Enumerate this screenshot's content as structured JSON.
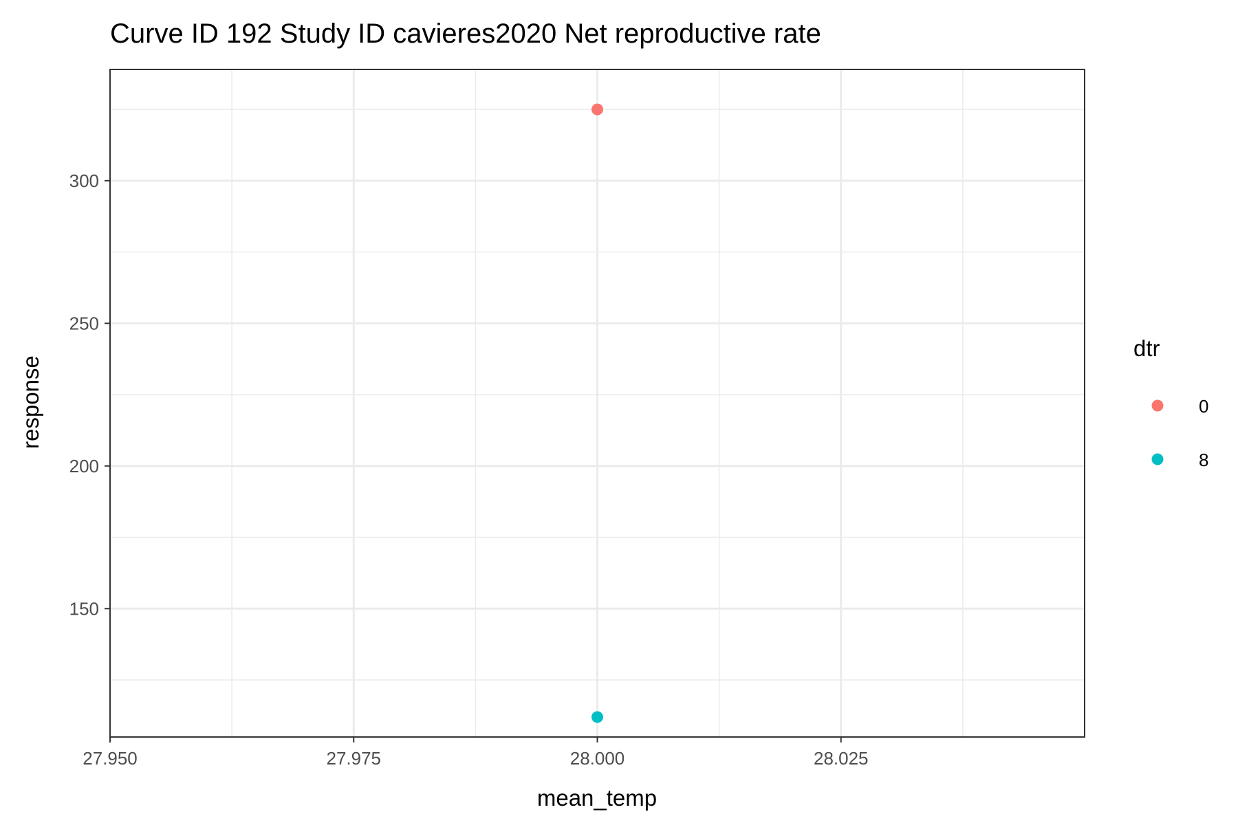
{
  "chart_data": {
    "type": "scatter",
    "title": "Curve ID 192 Study ID cavieres2020 Net reproductive rate",
    "xlabel": "mean_temp",
    "ylabel": "response",
    "xlim": [
      27.95,
      28.05
    ],
    "ylim": [
      105,
      339
    ],
    "x_ticks": [
      27.95,
      27.975,
      28.0,
      28.025
    ],
    "x_tick_labels": [
      "27.950",
      "27.975",
      "28.000",
      "28.025"
    ],
    "y_ticks": [
      150,
      200,
      250,
      300
    ],
    "y_tick_labels": [
      "150",
      "200",
      "250",
      "300"
    ],
    "grid": true,
    "legend": {
      "title": "dtr",
      "placement": "right"
    },
    "series": [
      {
        "name": "0",
        "color": "#F8766D",
        "points": [
          {
            "x": 28.0,
            "y": 325
          }
        ]
      },
      {
        "name": "8",
        "color": "#00BFC4",
        "points": [
          {
            "x": 28.0,
            "y": 112
          }
        ]
      }
    ]
  }
}
